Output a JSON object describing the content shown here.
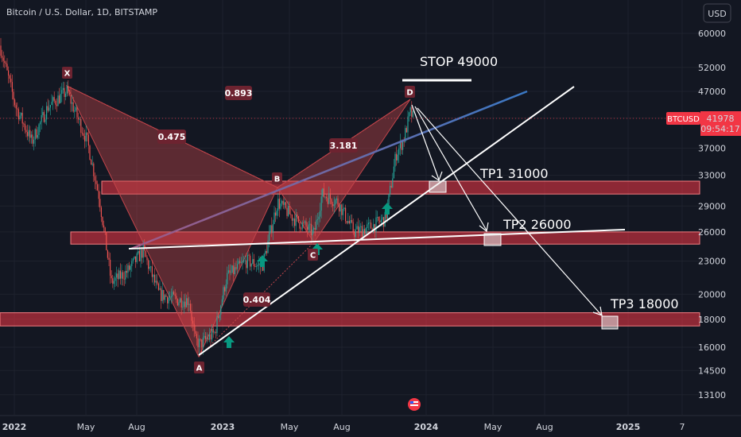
{
  "header": {
    "title": "Bitcoin / U.S. Dollar, 1D, BITSTAMP",
    "currency": "USD"
  },
  "price_tag": {
    "symbol": "BTCUSD",
    "price": "41978",
    "countdown": "09:54:17"
  },
  "chart_data": {
    "type": "candlestick",
    "y_scale": "log",
    "y_ticks": [
      "60000",
      "52000",
      "47000",
      "42000",
      "37000",
      "33000",
      "29000",
      "26000",
      "23000",
      "20000",
      "18000",
      "16000",
      "14500",
      "13100"
    ],
    "x_ticks": [
      "2022",
      "May",
      "Aug",
      "2023",
      "May",
      "Aug",
      "2024",
      "May",
      "Aug",
      "2025",
      "7"
    ],
    "pattern_points": [
      {
        "label": "X",
        "date": "2022-03-28",
        "price": 48000
      },
      {
        "label": "A",
        "date": "2022-11-21",
        "price": 15500
      },
      {
        "label": "B",
        "date": "2023-04-14",
        "price": 31000
      },
      {
        "label": "C",
        "date": "2023-06-15",
        "price": 25000
      },
      {
        "label": "D",
        "date": "2023-12-05",
        "price": 44000
      }
    ],
    "ratios": [
      "0.893",
      "0.475",
      "3.181",
      "0.404"
    ],
    "zones": [
      {
        "price_low": 30500,
        "price_high": 32200
      },
      {
        "price_low": 24700,
        "price_high": 26000
      },
      {
        "price_low": 17500,
        "price_high": 18500
      }
    ],
    "annotations": {
      "stop": "STOP 49000",
      "tp1": "TP1 31000",
      "tp2": "TP2 26000",
      "tp3": "TP3 18000"
    },
    "colors": {
      "background": "#131722",
      "candle_up": "#26a69a",
      "candle_down": "#ef5350",
      "zone": "#f23645",
      "harmonic": "#c2454b",
      "trend_blue": "#2962ff",
      "signal_arrow": "#089981"
    }
  }
}
